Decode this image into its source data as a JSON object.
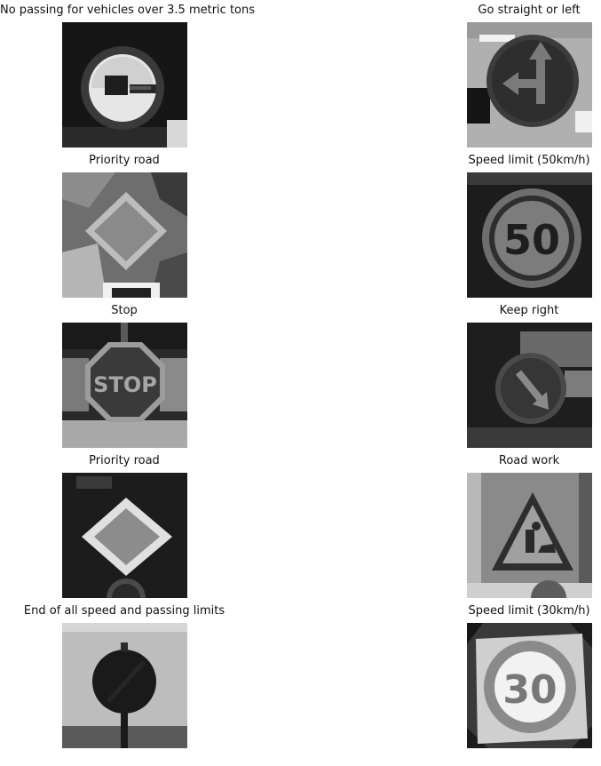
{
  "figure": {
    "colormap": "grayscale",
    "panels": [
      {
        "label": "No passing for vehicles over 3.5 metric tons",
        "sign": "no-passing-trucks"
      },
      {
        "label": "Go straight or left",
        "sign": "go-straight-or-left"
      },
      {
        "label": "Priority road",
        "sign": "priority-road"
      },
      {
        "label": "Speed limit (50km/h)",
        "sign": "speed-limit",
        "sign_text": "50"
      },
      {
        "label": "Stop",
        "sign": "stop",
        "sign_text": "STOP"
      },
      {
        "label": "Keep right",
        "sign": "keep-right"
      },
      {
        "label": "Priority road",
        "sign": "priority-road"
      },
      {
        "label": "Road work",
        "sign": "road-work"
      },
      {
        "label": "End of all speed and passing limits",
        "sign": "end-of-limits"
      },
      {
        "label": "Speed limit (30km/h)",
        "sign": "speed-limit",
        "sign_text": "30"
      }
    ]
  }
}
